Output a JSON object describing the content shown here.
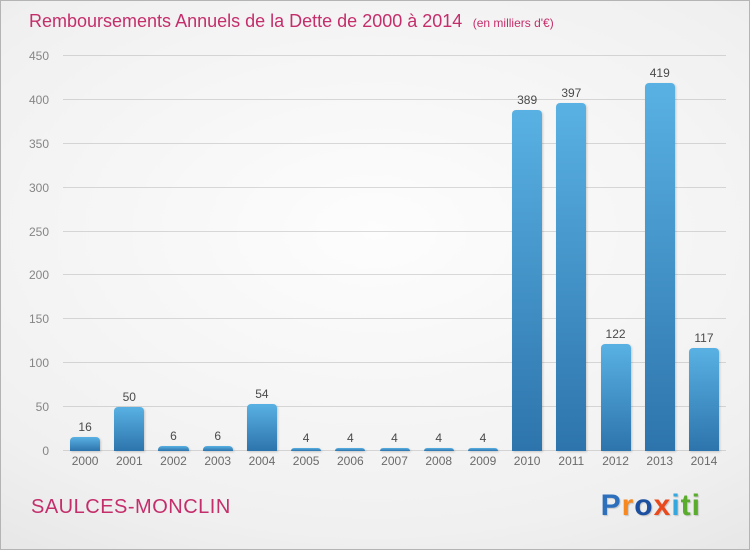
{
  "header": {
    "title": "Remboursements Annuels de la Dette de 2000 à 2014",
    "subtitle": "(en milliers d'€)"
  },
  "footer": {
    "location": "SAULCES-MONCLIN",
    "logo_letters": [
      {
        "char": "P",
        "color": "#2c6fbd"
      },
      {
        "char": "r",
        "color": "#f6881f"
      },
      {
        "char": "o",
        "color": "#1c4f9f"
      },
      {
        "char": "x",
        "color": "#e9491d"
      },
      {
        "char": "i",
        "color": "#34a7df"
      },
      {
        "char": "t",
        "color": "#5aac2c"
      },
      {
        "char": "i",
        "color": "#5aac2c"
      }
    ]
  },
  "colors": {
    "accent": "#c42e6b",
    "bar_top": "#59b1e3",
    "bar_bottom": "#2d74ac",
    "value_label": "#4a4a4a",
    "tick_label": "#858585"
  },
  "chart_data": {
    "type": "bar",
    "title": "Remboursements Annuels de la Dette de 2000 à 2014 (en milliers d'€)",
    "categories": [
      "2000",
      "2001",
      "2002",
      "2003",
      "2004",
      "2005",
      "2006",
      "2007",
      "2008",
      "2009",
      "2010",
      "2011",
      "2012",
      "2013",
      "2014"
    ],
    "values": [
      16,
      50,
      6,
      6,
      54,
      4,
      4,
      4,
      4,
      4,
      389,
      397,
      122,
      419,
      117
    ],
    "xlabel": "",
    "ylabel": "",
    "ylim": [
      0,
      450
    ],
    "ytick_step": 50,
    "grid": "horizontal",
    "legend": "none"
  }
}
